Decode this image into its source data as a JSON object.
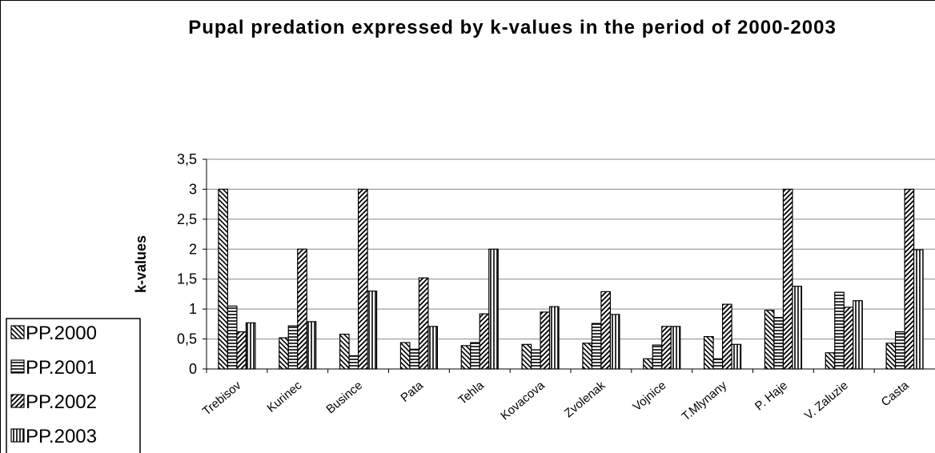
{
  "chart_data": {
    "type": "bar",
    "title": "Pupal predation expressed by k-values in the period of 2000-2003",
    "ylabel": "k-values",
    "categories": [
      "Trebisov",
      "Kurinec",
      "Busince",
      "Pata",
      "Tehla",
      "Kovacova",
      "Zvolenak",
      "Vojnice",
      "T.Mlynany",
      "P. Haje",
      "V. Zaluzie",
      "Casta"
    ],
    "series": [
      {
        "name": "PP.2000",
        "color": "#000000",
        "pattern": "back-diagonal",
        "values": [
          3.0,
          0.52,
          0.58,
          0.44,
          0.39,
          0.41,
          0.43,
          0.17,
          0.54,
          0.98,
          0.27,
          0.43
        ]
      },
      {
        "name": "PP.2001",
        "color": "#000000",
        "pattern": "horizontal",
        "values": [
          1.05,
          0.72,
          0.22,
          0.33,
          0.44,
          0.32,
          0.76,
          0.4,
          0.17,
          0.86,
          1.28,
          0.62
        ]
      },
      {
        "name": "PP.2002",
        "color": "#000000",
        "pattern": "diagonal",
        "values": [
          0.62,
          2.0,
          3.0,
          1.52,
          0.92,
          0.95,
          1.29,
          0.71,
          1.08,
          3.0,
          1.03,
          3.0
        ]
      },
      {
        "name": "PP.2003",
        "color": "#000000",
        "pattern": "vertical",
        "values": [
          0.77,
          0.79,
          1.3,
          0.71,
          2.0,
          1.04,
          0.91,
          0.71,
          0.41,
          1.38,
          1.14,
          1.99
        ]
      }
    ],
    "ylim": [
      0,
      3.5
    ],
    "yticks": [
      0,
      {
        "value": 0.5,
        "label": "0,5"
      },
      1,
      {
        "value": 1.5,
        "label": "1,5"
      },
      2,
      {
        "value": 2.5,
        "label": "2,5"
      },
      3,
      {
        "value": 3.5,
        "label": "3,5"
      }
    ],
    "grid": true,
    "legend": "bottom-left"
  }
}
